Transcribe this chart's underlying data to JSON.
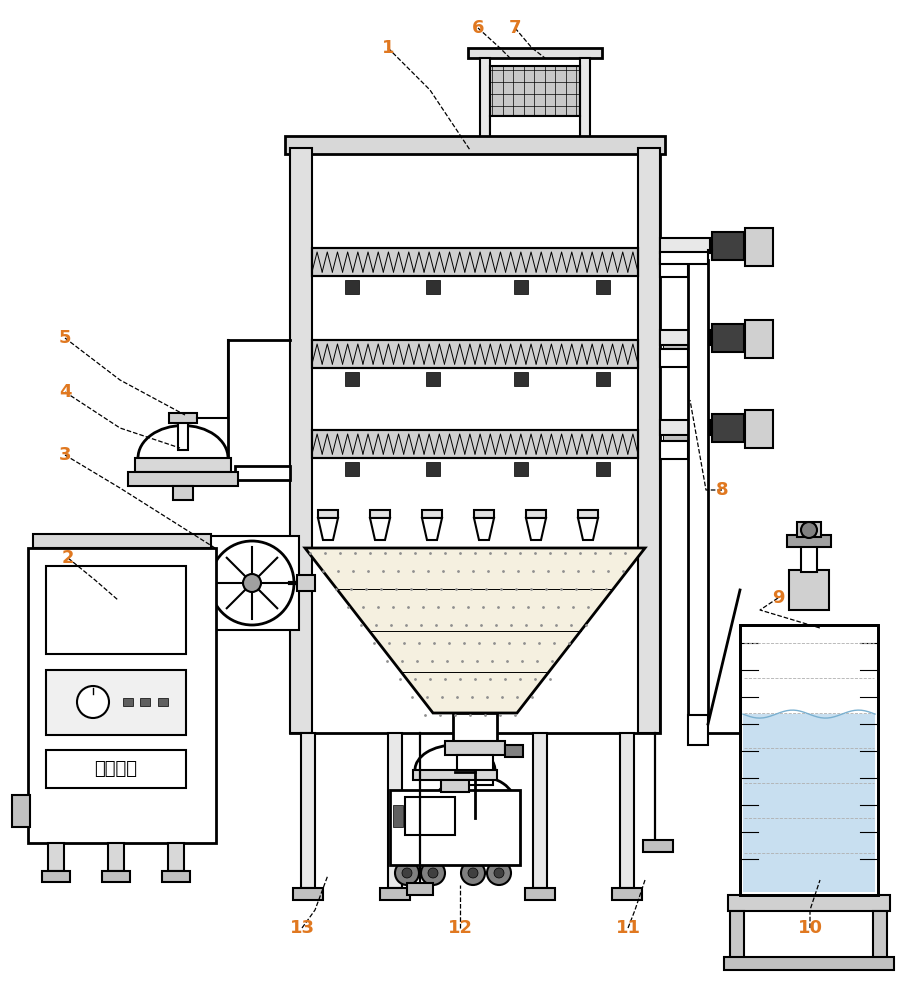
{
  "bg_color": "#ffffff",
  "line_color": "#000000",
  "label_color_orange": "#e07820",
  "line_width": 1.5,
  "fig_w": 9.22,
  "fig_h": 10.0,
  "dpi": 100
}
